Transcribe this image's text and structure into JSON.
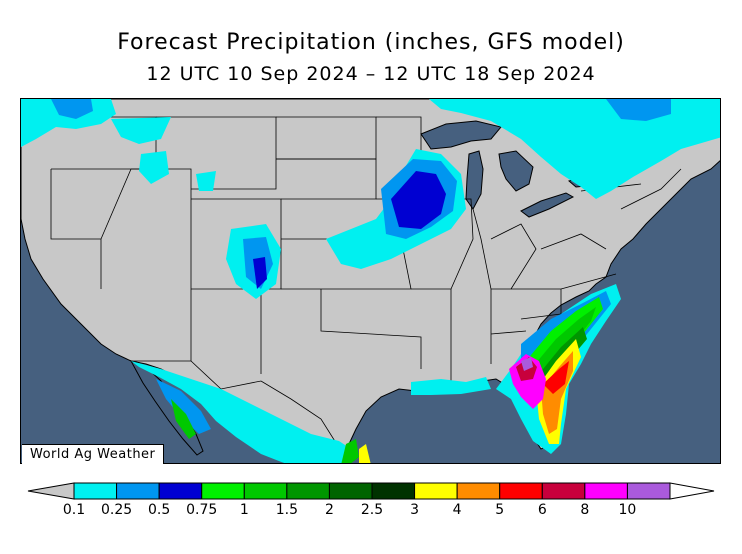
{
  "header": {
    "title": "Forecast Precipitation (inches, GFS model)",
    "valid_period": "12 UTC 10 Sep 2024 – 12 UTC 18 Sep 2024"
  },
  "map": {
    "credit": "World Ag Weather",
    "ocean_color": "#46607f",
    "land_color": "#c8c8c8"
  },
  "legend": {
    "bins": [
      {
        "label": "0.1",
        "color": "#00f0f0"
      },
      {
        "label": "0.25",
        "color": "#0096f0"
      },
      {
        "label": "0.5",
        "color": "#0000d2"
      },
      {
        "label": "0.75",
        "color": "#00f000"
      },
      {
        "label": "1",
        "color": "#00c800"
      },
      {
        "label": "1.5",
        "color": "#009600"
      },
      {
        "label": "2",
        "color": "#006400"
      },
      {
        "label": "2.5",
        "color": "#003200"
      },
      {
        "label": "3",
        "color": "#ffff00"
      },
      {
        "label": "4",
        "color": "#ff8c00"
      },
      {
        "label": "5",
        "color": "#ff0000"
      },
      {
        "label": "6",
        "color": "#c8003c"
      },
      {
        "label": "8",
        "color": "#ff00ff"
      },
      {
        "label": "10",
        "color": "#aa5adc"
      }
    ],
    "under_color": "#c8c8c8",
    "over_color": "#ffffff"
  }
}
